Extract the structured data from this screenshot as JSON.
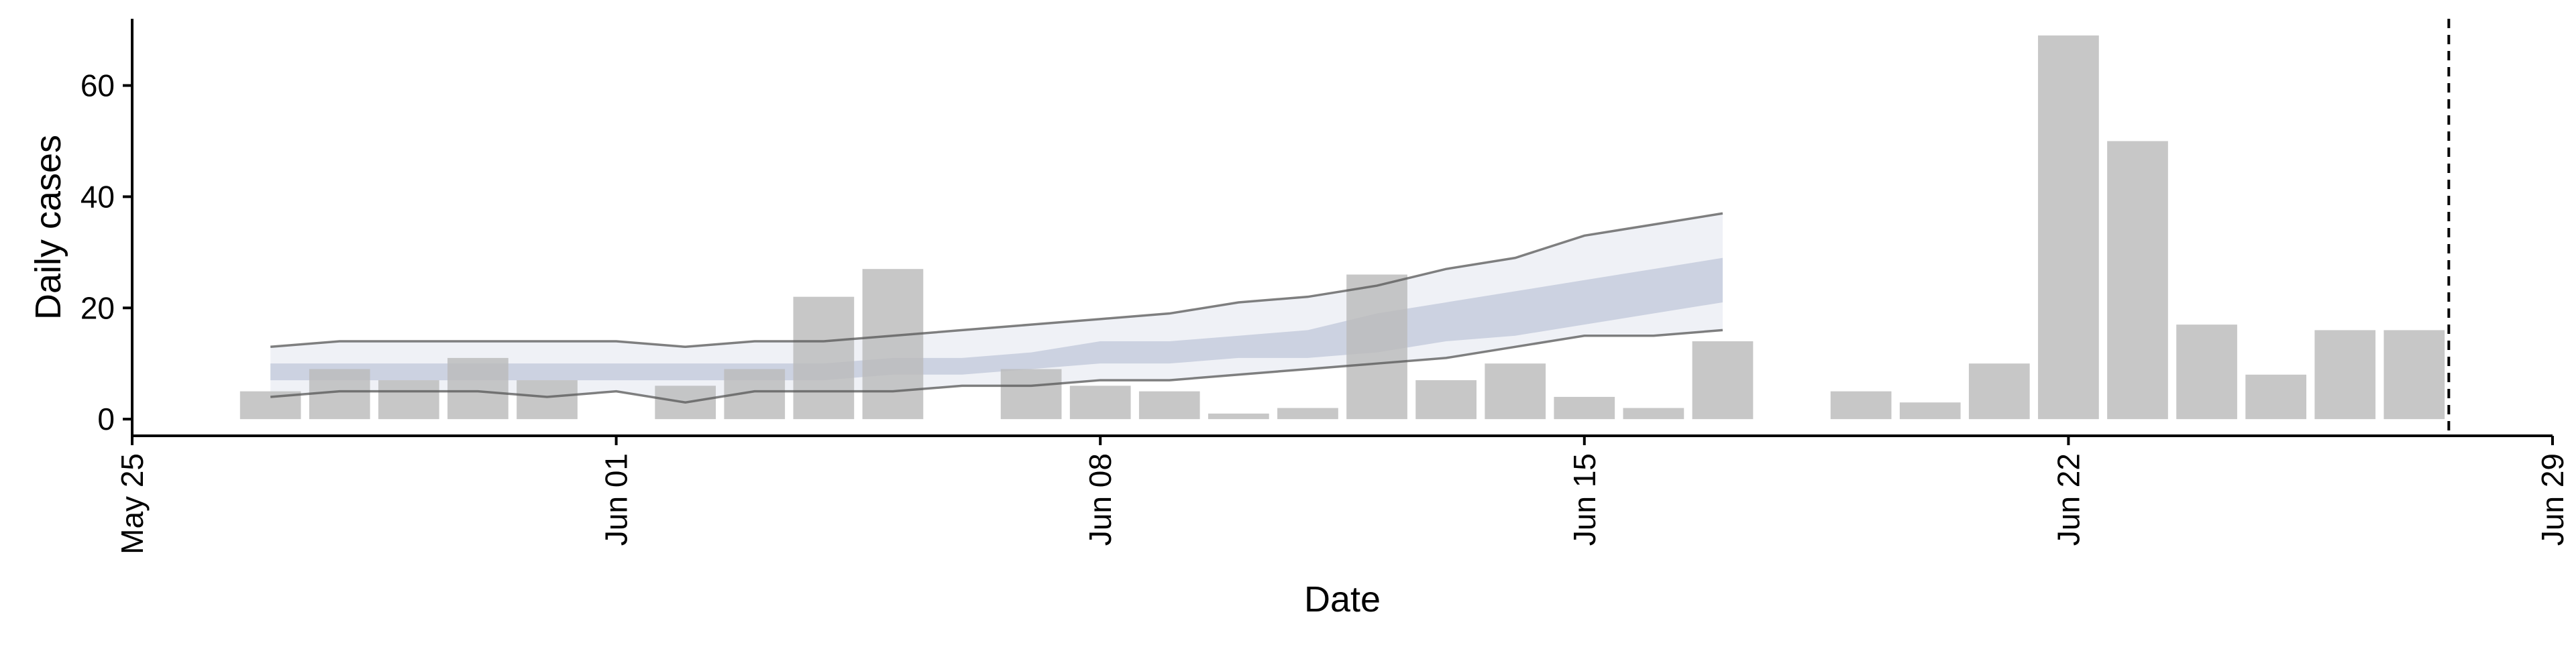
{
  "chart_data": {
    "type": "bar",
    "xlabel": "Date",
    "ylabel": "Daily cases",
    "xlim": [
      "2020-05-25",
      "2020-06-29"
    ],
    "ylim": [
      -3,
      72
    ],
    "x_ticks": [
      "2020-05-25",
      "2020-06-01",
      "2020-06-08",
      "2020-06-15",
      "2020-06-22",
      "2020-06-29"
    ],
    "x_tick_labels": [
      "May 25",
      "Jun 01",
      "Jun 08",
      "Jun 15",
      "Jun 22",
      "Jun 29"
    ],
    "y_ticks": [
      0,
      20,
      40,
      60
    ],
    "y_tick_labels": [
      "0",
      "20",
      "40",
      "60"
    ],
    "grid": false,
    "colors": {
      "bars": "#bbbbbb",
      "band_outer": "#eceef4",
      "band_inner": "#c6ccdd",
      "band_line": "#555555",
      "axes": "#000000",
      "reference_line": "#000000"
    },
    "bars": [
      {
        "date": "2020-05-27",
        "value": 5
      },
      {
        "date": "2020-05-28",
        "value": 9
      },
      {
        "date": "2020-05-29",
        "value": 7
      },
      {
        "date": "2020-05-30",
        "value": 11
      },
      {
        "date": "2020-05-31",
        "value": 7
      },
      {
        "date": "2020-06-02",
        "value": 6
      },
      {
        "date": "2020-06-03",
        "value": 9
      },
      {
        "date": "2020-06-04",
        "value": 22
      },
      {
        "date": "2020-06-05",
        "value": 27
      },
      {
        "date": "2020-06-07",
        "value": 9
      },
      {
        "date": "2020-06-08",
        "value": 6
      },
      {
        "date": "2020-06-09",
        "value": 5
      },
      {
        "date": "2020-06-10",
        "value": 1
      },
      {
        "date": "2020-06-11",
        "value": 2
      },
      {
        "date": "2020-06-12",
        "value": 26
      },
      {
        "date": "2020-06-13",
        "value": 7
      },
      {
        "date": "2020-06-14",
        "value": 10
      },
      {
        "date": "2020-06-15",
        "value": 4
      },
      {
        "date": "2020-06-16",
        "value": 2
      },
      {
        "date": "2020-06-17",
        "value": 14
      },
      {
        "date": "2020-06-19",
        "value": 5
      },
      {
        "date": "2020-06-20",
        "value": 3
      },
      {
        "date": "2020-06-21",
        "value": 10
      },
      {
        "date": "2020-06-22",
        "value": 69
      },
      {
        "date": "2020-06-23",
        "value": 50
      },
      {
        "date": "2020-06-24",
        "value": 17
      },
      {
        "date": "2020-06-25",
        "value": 8
      },
      {
        "date": "2020-06-26",
        "value": 16
      },
      {
        "date": "2020-06-27",
        "value": 16
      }
    ],
    "band": {
      "dates": [
        "2020-05-27",
        "2020-05-28",
        "2020-05-29",
        "2020-05-30",
        "2020-05-31",
        "2020-06-01",
        "2020-06-02",
        "2020-06-03",
        "2020-06-04",
        "2020-06-05",
        "2020-06-06",
        "2020-06-07",
        "2020-06-08",
        "2020-06-09",
        "2020-06-10",
        "2020-06-11",
        "2020-06-12",
        "2020-06-13",
        "2020-06-14",
        "2020-06-15",
        "2020-06-16",
        "2020-06-17"
      ],
      "upper": [
        13,
        14,
        14,
        14,
        14,
        14,
        13,
        14,
        14,
        15,
        16,
        17,
        18,
        19,
        21,
        22,
        24,
        27,
        29,
        33,
        35,
        37
      ],
      "inner_upper": [
        10,
        10,
        10,
        10,
        10,
        10,
        10,
        10,
        10,
        11,
        11,
        12,
        14,
        14,
        15,
        16,
        19,
        21,
        23,
        25,
        27,
        29
      ],
      "inner_lower": [
        7,
        7,
        7,
        7,
        7,
        7,
        7,
        7,
        7,
        8,
        8,
        9,
        10,
        10,
        11,
        11,
        12,
        14,
        15,
        17,
        19,
        21
      ],
      "lower": [
        4,
        5,
        5,
        5,
        4,
        5,
        3,
        5,
        5,
        5,
        6,
        6,
        7,
        7,
        8,
        9,
        10,
        11,
        13,
        15,
        15,
        16
      ]
    },
    "reference_line": {
      "date": "2020-06-27.5"
    }
  }
}
